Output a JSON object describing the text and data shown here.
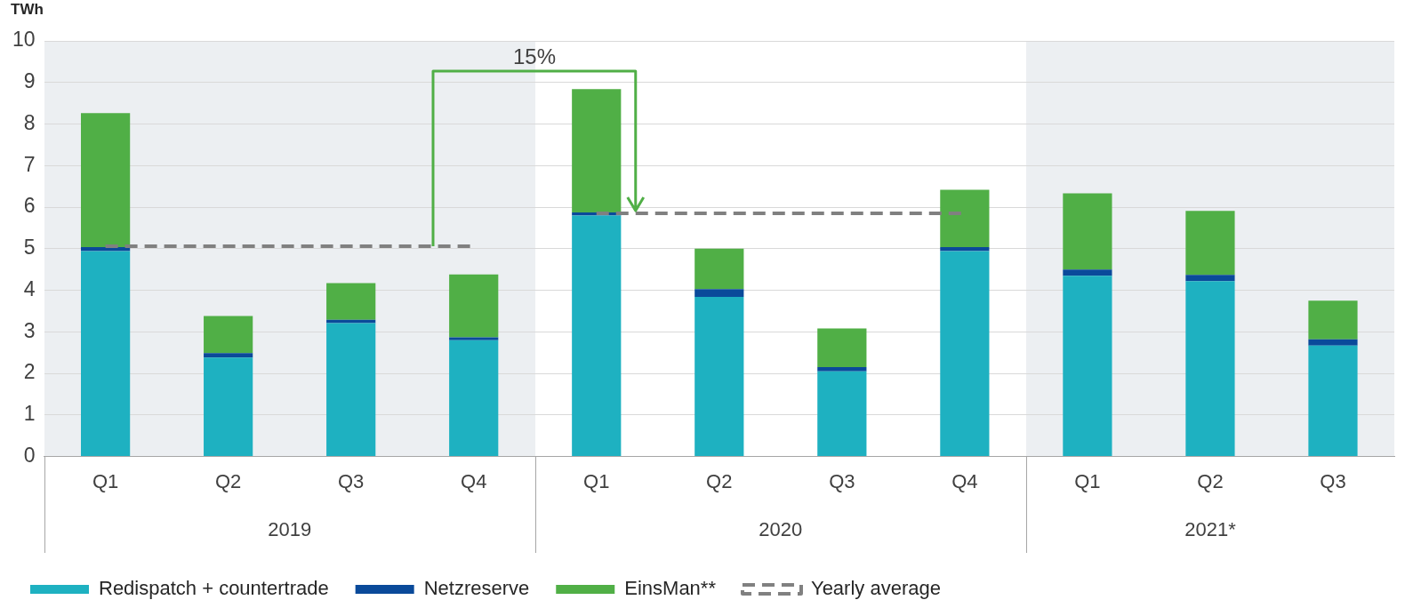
{
  "chart_data": {
    "type": "bar",
    "stacked": true,
    "ylabel": "TWh",
    "categories": [
      "Q1",
      "Q2",
      "Q3",
      "Q4",
      "Q1",
      "Q2",
      "Q3",
      "Q4",
      "Q1",
      "Q2",
      "Q3"
    ],
    "series": [
      {
        "name": "Redispatch + countertrade",
        "color": "#1eb1c1",
        "values": [
          4.94,
          2.38,
          3.21,
          2.8,
          5.8,
          3.84,
          2.05,
          4.94,
          4.35,
          4.22,
          2.67
        ]
      },
      {
        "name": "Netzreserve",
        "color": "#0a4a9a",
        "values": [
          0.1,
          0.11,
          0.08,
          0.07,
          0.07,
          0.19,
          0.1,
          0.1,
          0.15,
          0.15,
          0.15
        ]
      },
      {
        "name": "EinsMan**",
        "color": "#50af46",
        "values": [
          3.22,
          0.89,
          0.88,
          1.51,
          2.97,
          0.97,
          0.93,
          1.38,
          1.83,
          1.54,
          0.93
        ]
      },
      {
        "name": "Yearly average",
        "type": "line",
        "line_style": "dashed",
        "marker": "none",
        "color": "#808080",
        "values": [
          5.06,
          5.06,
          5.06,
          5.06,
          null,
          null,
          null,
          null,
          null,
          null,
          null
        ]
      },
      {
        "type": "line",
        "line_style": "dashed",
        "marker": "none",
        "color": "#808080",
        "values": [
          null,
          null,
          null,
          null,
          5.85,
          5.85,
          5.85,
          5.85,
          null,
          null,
          null
        ]
      }
    ],
    "annotations": [
      "15%",
      "2019",
      "2020",
      "2021*"
    ],
    "ylim": [
      0,
      10
    ],
    "yticks": [
      0,
      1,
      2,
      3,
      4,
      5,
      6,
      7,
      8,
      9,
      10
    ],
    "grid": "y",
    "legend": "bottom"
  }
}
